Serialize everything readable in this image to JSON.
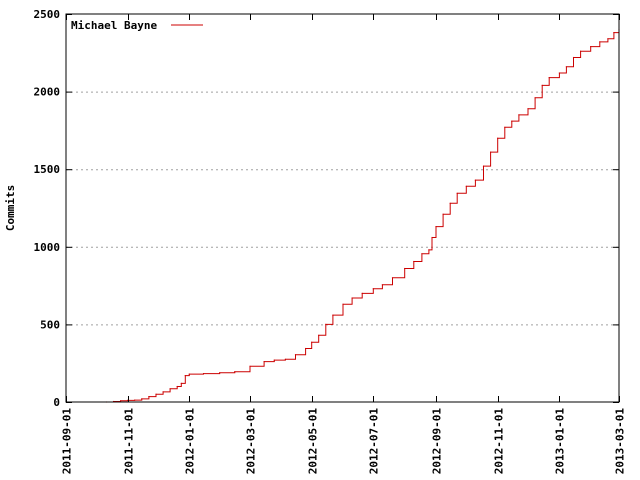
{
  "chart_data": {
    "type": "line",
    "title": "",
    "xlabel": "",
    "ylabel": "Commits",
    "ylim": [
      0,
      2500
    ],
    "xlim": [
      "2011-09-01",
      "2013-03-01"
    ],
    "x_ticks": [
      "2011-09-01",
      "2011-11-01",
      "2012-01-01",
      "2012-03-01",
      "2012-05-01",
      "2012-07-01",
      "2012-09-01",
      "2012-11-01",
      "2013-01-01",
      "2013-03-01"
    ],
    "y_ticks": [
      0,
      500,
      1000,
      1500,
      2000,
      2500
    ],
    "grid": "horizontal-dashed",
    "legend_position": "top-left",
    "colors": {
      "series": "#cc0000",
      "grid": "#a0a0a0"
    },
    "series": [
      {
        "name": "Michael Bayne",
        "step": true,
        "points": [
          [
            "2011-10-11",
            0
          ],
          [
            "2011-10-18",
            3
          ],
          [
            "2011-10-25",
            8
          ],
          [
            "2011-11-01",
            10
          ],
          [
            "2011-11-08",
            12
          ],
          [
            "2011-11-15",
            20
          ],
          [
            "2011-11-22",
            35
          ],
          [
            "2011-11-29",
            50
          ],
          [
            "2011-12-06",
            65
          ],
          [
            "2011-12-13",
            85
          ],
          [
            "2011-12-20",
            100
          ],
          [
            "2011-12-24",
            120
          ],
          [
            "2011-12-28",
            170
          ],
          [
            "2012-01-01",
            180
          ],
          [
            "2012-01-15",
            183
          ],
          [
            "2012-01-31",
            188
          ],
          [
            "2012-02-15",
            195
          ],
          [
            "2012-03-01",
            230
          ],
          [
            "2012-03-15",
            260
          ],
          [
            "2012-03-25",
            270
          ],
          [
            "2012-04-05",
            275
          ],
          [
            "2012-04-15",
            305
          ],
          [
            "2012-04-25",
            345
          ],
          [
            "2012-05-01",
            385
          ],
          [
            "2012-05-08",
            430
          ],
          [
            "2012-05-15",
            500
          ],
          [
            "2012-05-22",
            560
          ],
          [
            "2012-06-01",
            630
          ],
          [
            "2012-06-10",
            670
          ],
          [
            "2012-06-20",
            700
          ],
          [
            "2012-07-01",
            730
          ],
          [
            "2012-07-10",
            755
          ],
          [
            "2012-07-20",
            800
          ],
          [
            "2012-08-01",
            860
          ],
          [
            "2012-08-10",
            905
          ],
          [
            "2012-08-18",
            955
          ],
          [
            "2012-08-25",
            980
          ],
          [
            "2012-08-28",
            1060
          ],
          [
            "2012-09-01",
            1130
          ],
          [
            "2012-09-08",
            1210
          ],
          [
            "2012-09-15",
            1280
          ],
          [
            "2012-09-22",
            1345
          ],
          [
            "2012-10-01",
            1390
          ],
          [
            "2012-10-10",
            1430
          ],
          [
            "2012-10-18",
            1520
          ],
          [
            "2012-10-25",
            1610
          ],
          [
            "2012-11-01",
            1700
          ],
          [
            "2012-11-08",
            1770
          ],
          [
            "2012-11-15",
            1810
          ],
          [
            "2012-11-22",
            1850
          ],
          [
            "2012-12-01",
            1890
          ],
          [
            "2012-12-08",
            1960
          ],
          [
            "2012-12-15",
            2040
          ],
          [
            "2012-12-22",
            2090
          ],
          [
            "2013-01-01",
            2120
          ],
          [
            "2013-01-08",
            2160
          ],
          [
            "2013-01-15",
            2220
          ],
          [
            "2013-01-22",
            2260
          ],
          [
            "2013-02-01",
            2290
          ],
          [
            "2013-02-10",
            2320
          ],
          [
            "2013-02-18",
            2340
          ],
          [
            "2013-02-24",
            2380
          ],
          [
            "2013-03-01",
            2400
          ]
        ]
      }
    ]
  }
}
